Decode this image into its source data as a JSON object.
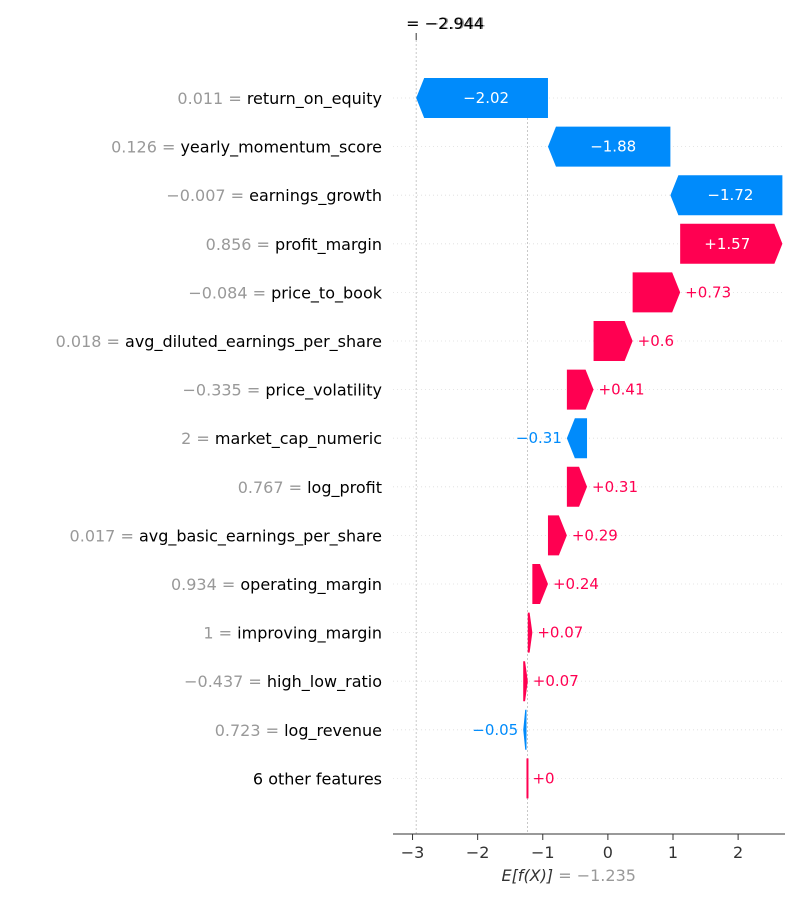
{
  "chart_data": {
    "type": "waterfall",
    "xlim": [
      -3.3,
      2.72
    ],
    "x_ticks": [
      -3,
      -2,
      -1,
      0,
      1,
      2
    ],
    "x_tick_labels": [
      "−3",
      "−2",
      "−1",
      "0",
      "1",
      "2"
    ],
    "expected_value": -1.235,
    "expected_value_label": "E[f(X)]",
    "expected_value_text": "= −1.235",
    "output_value": -2.944,
    "output_value_text": "= −2.944",
    "output_value_overlay": "−2.944",
    "colors": {
      "positive": "#ff0051",
      "negative": "#008bfb",
      "muted": "#999999",
      "text": "#000000"
    },
    "features": [
      {
        "value_text": "0.011 =",
        "name": "return_on_equity",
        "start": -0.92,
        "end": -2.944,
        "label": "−2.02"
      },
      {
        "value_text": "0.126 =",
        "name": "yearly_momentum_score",
        "start": 0.96,
        "end": -0.92,
        "label": "−1.88"
      },
      {
        "value_text": "−0.007 =",
        "name": "earnings_growth",
        "start": 2.68,
        "end": 0.96,
        "label": "−1.72"
      },
      {
        "value_text": "0.856 =",
        "name": "profit_margin",
        "start": 1.11,
        "end": 2.68,
        "label": "+1.57"
      },
      {
        "value_text": "−0.084 =",
        "name": "price_to_book",
        "start": 0.38,
        "end": 1.11,
        "label": "+0.73"
      },
      {
        "value_text": "0.018 =",
        "name": "avg_diluted_earnings_per_share",
        "start": -0.22,
        "end": 0.38,
        "label": "+0.6"
      },
      {
        "value_text": "−0.335 =",
        "name": "price_volatility",
        "start": -0.63,
        "end": -0.22,
        "label": "+0.41"
      },
      {
        "value_text": "2 =",
        "name": "market_cap_numeric",
        "start": -0.32,
        "end": -0.63,
        "label": "−0.31"
      },
      {
        "value_text": "0.767 =",
        "name": "log_profit",
        "start": -0.63,
        "end": -0.32,
        "label": "+0.31"
      },
      {
        "value_text": "0.017 =",
        "name": "avg_basic_earnings_per_share",
        "start": -0.92,
        "end": -0.63,
        "label": "+0.29"
      },
      {
        "value_text": "0.934 =",
        "name": "operating_margin",
        "start": -1.16,
        "end": -0.92,
        "label": "+0.24"
      },
      {
        "value_text": "1 =",
        "name": "improving_margin",
        "start": -1.23,
        "end": -1.16,
        "label": "+0.07"
      },
      {
        "value_text": "−0.437 =",
        "name": "high_low_ratio",
        "start": -1.3,
        "end": -1.23,
        "label": "+0.07"
      },
      {
        "value_text": "0.723 =",
        "name": "log_revenue",
        "start": -1.25,
        "end": -1.3,
        "label": "−0.05"
      },
      {
        "value_text": "",
        "name": "6 other features",
        "start": -1.235,
        "end": -1.235,
        "label": "+0"
      }
    ]
  }
}
